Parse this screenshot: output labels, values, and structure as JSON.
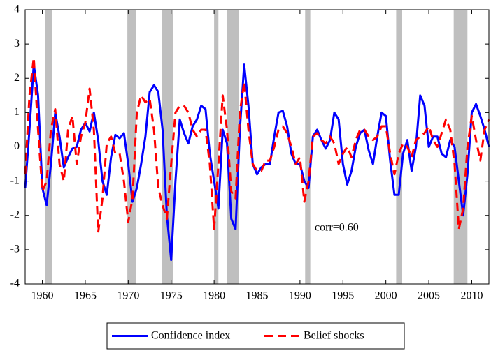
{
  "chart_data": {
    "type": "line",
    "annotation": "corr=0.60",
    "x": [
      1958,
      1958.5,
      1959,
      1959.5,
      1960,
      1960.5,
      1961,
      1961.5,
      1962,
      1962.5,
      1963,
      1963.5,
      1964,
      1964.5,
      1965,
      1965.5,
      1966,
      1966.5,
      1967,
      1967.5,
      1968,
      1968.5,
      1969,
      1969.5,
      1970,
      1970.5,
      1971,
      1971.5,
      1972,
      1972.5,
      1973,
      1973.5,
      1974,
      1974.5,
      1975,
      1975.5,
      1976,
      1976.5,
      1977,
      1977.5,
      1978,
      1978.5,
      1979,
      1979.5,
      1980,
      1980.5,
      1981,
      1981.5,
      1982,
      1982.5,
      1983,
      1983.5,
      1984,
      1984.5,
      1985,
      1985.5,
      1986,
      1986.5,
      1987,
      1987.5,
      1988,
      1988.5,
      1989,
      1989.5,
      1990,
      1990.5,
      1991,
      1991.5,
      1992,
      1992.5,
      1993,
      1993.5,
      1994,
      1994.5,
      1995,
      1995.5,
      1996,
      1996.5,
      1997,
      1997.5,
      1998,
      1998.5,
      1999,
      1999.5,
      2000,
      2000.5,
      2001,
      2001.5,
      2002,
      2002.5,
      2003,
      2003.5,
      2004,
      2004.5,
      2005,
      2005.5,
      2006,
      2006.5,
      2007,
      2007.5,
      2008,
      2008.5,
      2009,
      2009.5,
      2010,
      2010.5,
      2011,
      2011.5,
      2012
    ],
    "series": [
      {
        "name": "Confidence index",
        "color": "#0000ff",
        "style": "solid",
        "values": [
          -1.2,
          0.5,
          2.4,
          1.5,
          -1.2,
          -1.7,
          -0.5,
          1.0,
          0.3,
          -0.6,
          -0.3,
          -0.05,
          0.0,
          0.5,
          0.7,
          0.45,
          1.0,
          0.2,
          -1.0,
          -1.4,
          -0.3,
          0.35,
          0.25,
          0.4,
          -0.5,
          -1.6,
          -1.2,
          -0.5,
          0.3,
          1.6,
          1.8,
          1.6,
          0.5,
          -2.0,
          -3.3,
          -1.0,
          0.8,
          0.4,
          0.1,
          0.6,
          0.8,
          1.2,
          1.1,
          -0.2,
          -1.0,
          -1.8,
          0.5,
          0.1,
          -2.1,
          -2.4,
          0.5,
          2.4,
          1.2,
          -0.5,
          -0.8,
          -0.6,
          -0.5,
          -0.5,
          0.3,
          1.0,
          1.05,
          0.6,
          -0.2,
          -0.5,
          -0.5,
          -1.0,
          -1.2,
          0.3,
          0.5,
          0.2,
          -0.05,
          0.2,
          1.0,
          0.8,
          -0.5,
          -1.1,
          -0.7,
          0.0,
          0.4,
          0.5,
          -0.1,
          -0.5,
          0.3,
          1.0,
          0.9,
          -0.4,
          -1.4,
          -1.4,
          -0.2,
          0.2,
          -0.7,
          0.0,
          1.5,
          1.2,
          0.0,
          0.3,
          0.3,
          -0.2,
          -0.3,
          0.2,
          0.0,
          -1.0,
          -2.0,
          -0.8,
          1.0,
          1.25,
          0.9,
          0.5,
          0.0
        ]
      },
      {
        "name": "Belief shocks",
        "color": "#ff0000",
        "style": "dashed",
        "values": [
          -0.8,
          1.5,
          2.6,
          0.5,
          -1.3,
          -1.0,
          0.5,
          1.1,
          -0.5,
          -1.0,
          0.5,
          0.9,
          -0.5,
          0.3,
          0.7,
          1.7,
          0.5,
          -2.5,
          -1.5,
          0.1,
          0.3,
          -0.2,
          -0.2,
          -1.0,
          -2.2,
          -1.5,
          1.0,
          1.5,
          1.3,
          1.4,
          0.5,
          -1.2,
          -1.7,
          -2.1,
          -0.5,
          1.0,
          1.2,
          1.2,
          1.0,
          0.5,
          0.3,
          0.5,
          0.5,
          -0.5,
          -2.4,
          -0.5,
          1.5,
          0.5,
          -1.3,
          -1.5,
          1.0,
          1.9,
          0.5,
          -0.5,
          -0.7,
          -0.7,
          -0.4,
          -0.4,
          0.0,
          0.5,
          0.6,
          0.4,
          0.0,
          -0.5,
          -0.3,
          -1.6,
          -1.0,
          0.3,
          0.4,
          0.2,
          0.1,
          0.3,
          0.1,
          -0.5,
          -0.2,
          0.0,
          -0.3,
          0.2,
          0.5,
          0.5,
          0.3,
          0.2,
          0.3,
          0.6,
          0.6,
          -0.2,
          -0.8,
          -0.2,
          0.1,
          0.0,
          -0.3,
          0.2,
          0.3,
          0.4,
          0.6,
          0.2,
          0.0,
          0.4,
          0.8,
          0.5,
          -0.5,
          -2.4,
          -1.8,
          0.0,
          0.9,
          0.2,
          -0.4,
          0.5,
          0.8
        ]
      }
    ],
    "shaded_periods": [
      [
        1960.3,
        1961.1
      ],
      [
        1969.9,
        1970.9
      ],
      [
        1973.9,
        1975.2
      ],
      [
        1980.0,
        1980.5
      ],
      [
        1981.5,
        1982.9
      ],
      [
        1990.6,
        1991.2
      ],
      [
        2001.2,
        2001.9
      ],
      [
        2007.9,
        2009.5
      ]
    ],
    "shade_color": "#bfbfbf",
    "hline": 0,
    "xlim": [
      1958,
      2012
    ],
    "xticks": [
      1960,
      1965,
      1970,
      1975,
      1980,
      1985,
      1990,
      1995,
      2000,
      2005,
      2010
    ],
    "ylim": [
      -4,
      4
    ],
    "yticks": [
      -4,
      -3,
      -2,
      -1,
      0,
      1,
      2,
      3,
      4
    ],
    "legend": "bottom"
  }
}
